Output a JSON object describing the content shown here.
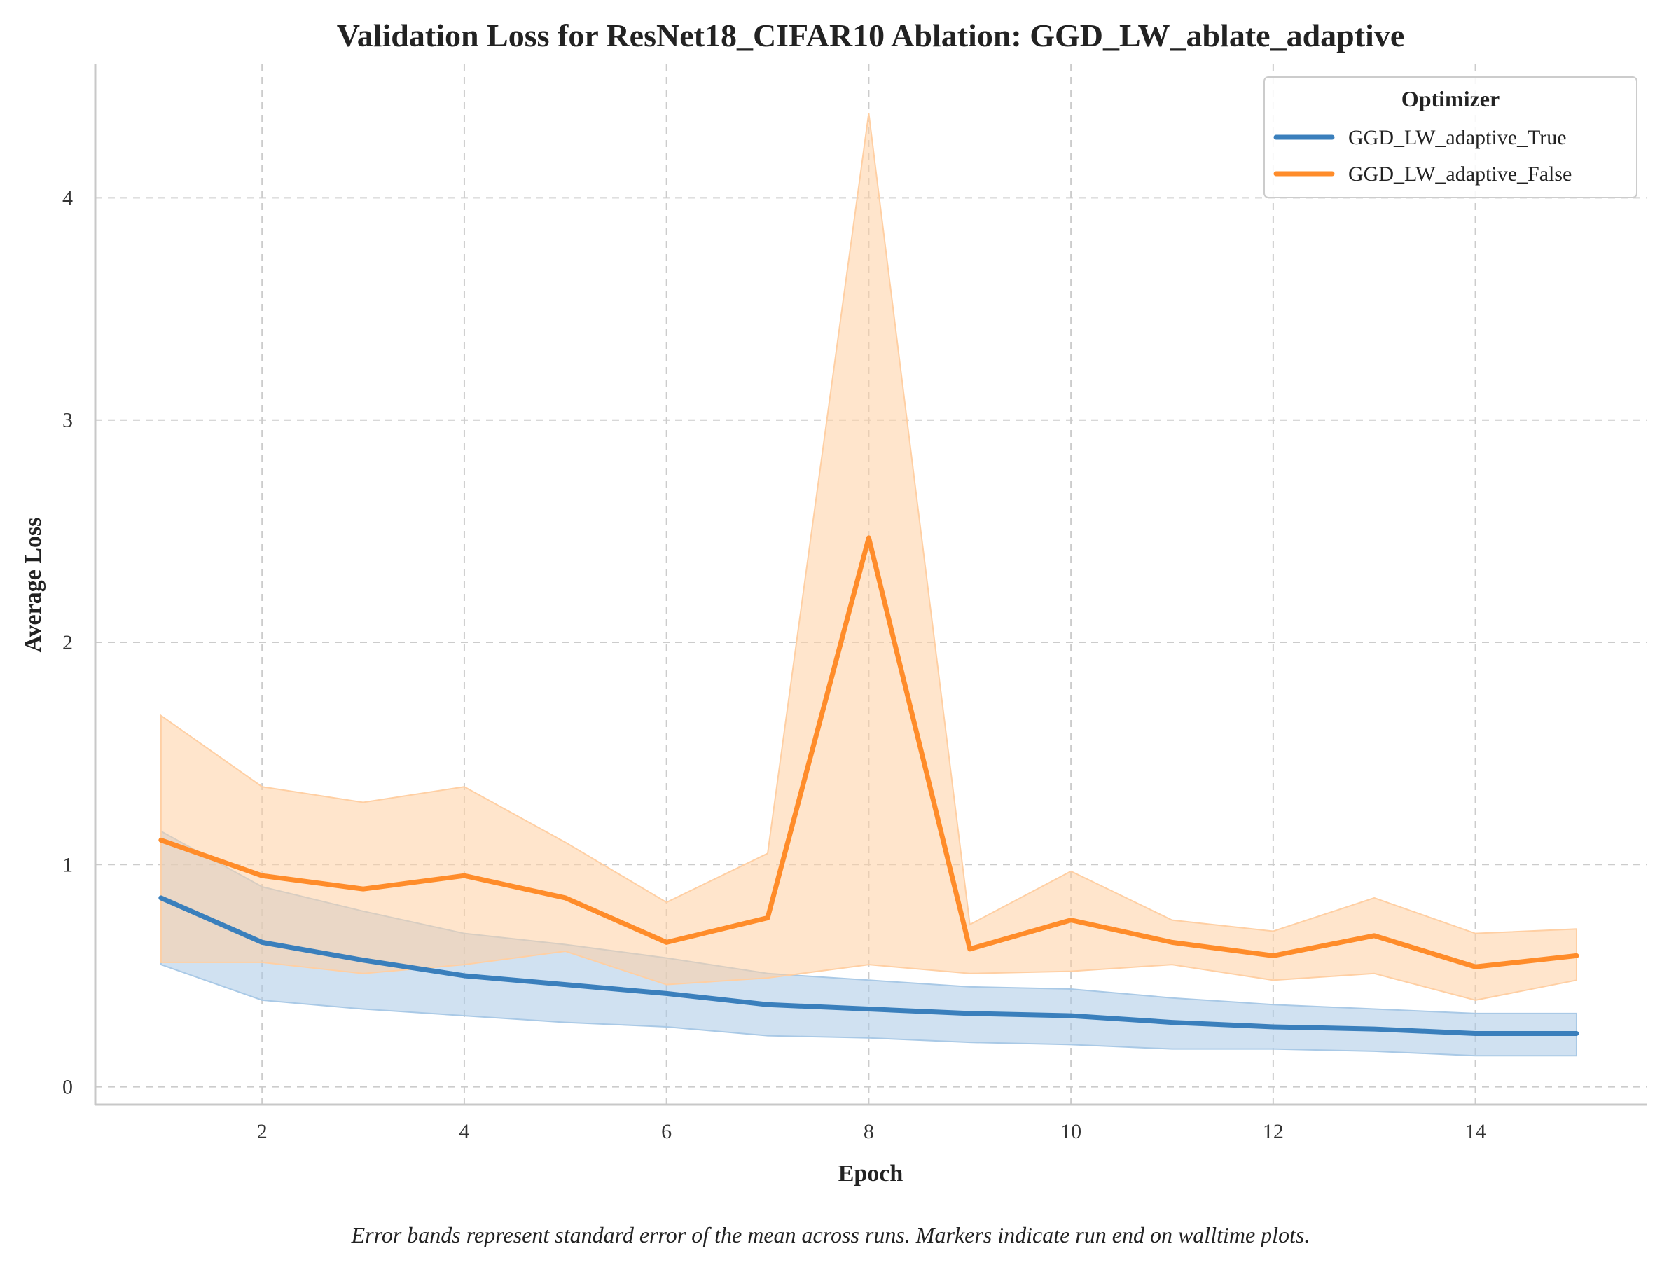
{
  "chart_data": {
    "type": "line",
    "title": "Validation Loss for ResNet18_CIFAR10 Ablation: GGD_LW_ablate_adaptive",
    "xlabel": "Epoch",
    "ylabel": "Average Loss",
    "xlim": [
      0.35,
      15.7
    ],
    "ylim": [
      -0.08,
      4.6
    ],
    "xticks": [
      2,
      4,
      6,
      8,
      10,
      12,
      14
    ],
    "yticks": [
      0,
      1,
      2,
      3,
      4
    ],
    "grid": true,
    "legend": {
      "title": "Optimizer",
      "placement": "top-right"
    },
    "caption": "Error bands represent standard error of the mean across runs. Markers indicate run end on walltime plots.",
    "x": [
      1,
      2,
      3,
      4,
      5,
      6,
      7,
      8,
      9,
      10,
      11,
      12,
      13,
      14,
      15
    ],
    "series": [
      {
        "name": "GGD_LW_adaptive_True",
        "color": "#3a7fbc",
        "band_color": "#a9c9e6",
        "values": [
          0.85,
          0.65,
          0.57,
          0.5,
          0.46,
          0.42,
          0.37,
          0.35,
          0.33,
          0.32,
          0.29,
          0.27,
          0.26,
          0.24,
          0.24
        ],
        "lower": [
          0.55,
          0.39,
          0.35,
          0.32,
          0.29,
          0.27,
          0.23,
          0.22,
          0.2,
          0.19,
          0.17,
          0.17,
          0.16,
          0.14,
          0.14
        ],
        "upper": [
          1.15,
          0.9,
          0.79,
          0.69,
          0.64,
          0.58,
          0.51,
          0.48,
          0.45,
          0.44,
          0.4,
          0.37,
          0.35,
          0.33,
          0.33
        ]
      },
      {
        "name": "GGD_LW_adaptive_False",
        "color": "#ff8c2a",
        "band_color": "#ffcfa3",
        "values": [
          1.11,
          0.95,
          0.89,
          0.95,
          0.85,
          0.65,
          0.76,
          2.47,
          0.62,
          0.75,
          0.65,
          0.59,
          0.68,
          0.54,
          0.59
        ],
        "lower": [
          0.56,
          0.56,
          0.51,
          0.55,
          0.61,
          0.46,
          0.49,
          0.55,
          0.51,
          0.52,
          0.55,
          0.48,
          0.51,
          0.39,
          0.48
        ],
        "upper": [
          1.67,
          1.35,
          1.28,
          1.35,
          1.1,
          0.83,
          1.05,
          4.38,
          0.73,
          0.97,
          0.75,
          0.7,
          0.85,
          0.69,
          0.71
        ]
      }
    ]
  }
}
